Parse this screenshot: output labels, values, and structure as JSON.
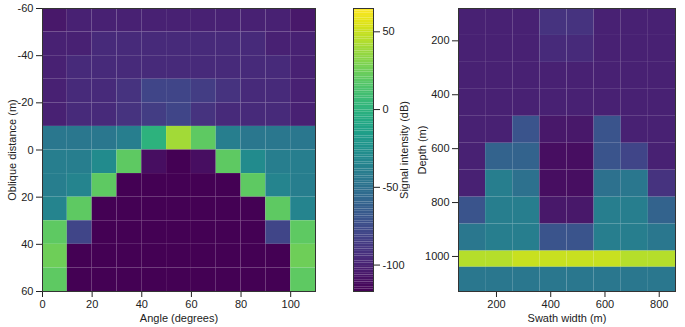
{
  "chart_data": [
    {
      "type": "heatmap",
      "x_label": "Angle (degrees)",
      "y_label": "Oblique distance (m)",
      "xlim": [
        0,
        110
      ],
      "ylim": [
        60,
        -60
      ],
      "xticks": [
        0,
        20,
        40,
        60,
        80,
        100
      ],
      "yticks": [
        -60,
        -40,
        -20,
        0,
        20,
        40,
        60
      ],
      "color": "viridis",
      "cells": {
        "x_edges": [
          0,
          10,
          20,
          30,
          40,
          50,
          60,
          70,
          80,
          90,
          100,
          110
        ],
        "y_edges": [
          -60,
          -50,
          -40,
          -30,
          -20,
          -10,
          0,
          10,
          20,
          30,
          40,
          50,
          60
        ],
        "values": [
          [
            -105,
            -100,
            -100,
            -100,
            -100,
            -100,
            -100,
            -100,
            -100,
            -100,
            -105
          ],
          [
            -100,
            -100,
            -95,
            -95,
            -95,
            -95,
            -95,
            -95,
            -95,
            -100,
            -100
          ],
          [
            -100,
            -95,
            -95,
            -95,
            -95,
            -95,
            -95,
            -95,
            -95,
            -95,
            -100
          ],
          [
            -100,
            -95,
            -95,
            -90,
            -80,
            -80,
            -85,
            -90,
            -95,
            -95,
            -100
          ],
          [
            -100,
            -95,
            -95,
            -90,
            -85,
            -80,
            -90,
            -95,
            -95,
            -95,
            -100
          ],
          [
            -45,
            -45,
            -45,
            -40,
            0,
            40,
            20,
            -40,
            -45,
            -45,
            -45
          ],
          [
            -40,
            -40,
            -30,
            20,
            -110,
            -120,
            -110,
            20,
            -30,
            -40,
            -40
          ],
          [
            -40,
            -35,
            20,
            -120,
            -120,
            -120,
            -120,
            -120,
            20,
            -35,
            -40
          ],
          [
            -35,
            20,
            -120,
            -120,
            -120,
            -120,
            -120,
            -120,
            -120,
            20,
            -35
          ],
          [
            20,
            -80,
            -120,
            -120,
            -120,
            -120,
            -120,
            -120,
            -120,
            -80,
            20
          ],
          [
            25,
            -120,
            -120,
            -120,
            -120,
            -120,
            -120,
            -120,
            -120,
            -120,
            25
          ],
          [
            20,
            -120,
            -120,
            -120,
            -120,
            -120,
            -120,
            -120,
            -120,
            -120,
            20
          ]
        ]
      },
      "colorbar": {
        "label": "Signal intensity (dB)",
        "range": [
          -117,
          65
        ],
        "ticks": [
          50,
          0,
          -50,
          -100
        ]
      }
    },
    {
      "type": "heatmap",
      "x_label": "Swath width (m)",
      "y_label": "Depth (m)",
      "xlim": [
        60,
        860
      ],
      "ylim": [
        1130,
        80
      ],
      "xticks": [
        200,
        400,
        600,
        800
      ],
      "yticks": [
        200,
        400,
        600,
        800,
        1000
      ],
      "color": "viridis",
      "cells": {
        "x_edges": [
          60,
          160,
          260,
          360,
          460,
          560,
          660,
          760,
          860
        ],
        "y_edges": [
          80,
          180,
          280,
          380,
          480,
          580,
          680,
          780,
          880,
          980,
          1040,
          1130
        ],
        "values": [
          [
            -100,
            -100,
            -100,
            -90,
            -90,
            -100,
            -100,
            -100
          ],
          [
            -100,
            -100,
            -100,
            -95,
            -95,
            -100,
            -100,
            -100
          ],
          [
            -100,
            -100,
            -100,
            -100,
            -100,
            -100,
            -100,
            -100
          ],
          [
            -100,
            -100,
            -100,
            -100,
            -100,
            -100,
            -100,
            -100
          ],
          [
            -100,
            -100,
            -70,
            -105,
            -105,
            -70,
            -100,
            -100
          ],
          [
            -100,
            -60,
            -60,
            -110,
            -110,
            -70,
            -80,
            -100
          ],
          [
            -100,
            -40,
            -50,
            -110,
            -110,
            -50,
            -45,
            -90
          ],
          [
            -70,
            -40,
            -40,
            -105,
            -105,
            -40,
            -40,
            -60
          ],
          [
            -45,
            -40,
            -40,
            -70,
            -70,
            -40,
            -40,
            -45
          ],
          [
            45,
            45,
            50,
            50,
            50,
            50,
            45,
            45
          ],
          [
            -45,
            -45,
            -45,
            -45,
            -45,
            -45,
            -45,
            -45
          ]
        ]
      }
    }
  ]
}
